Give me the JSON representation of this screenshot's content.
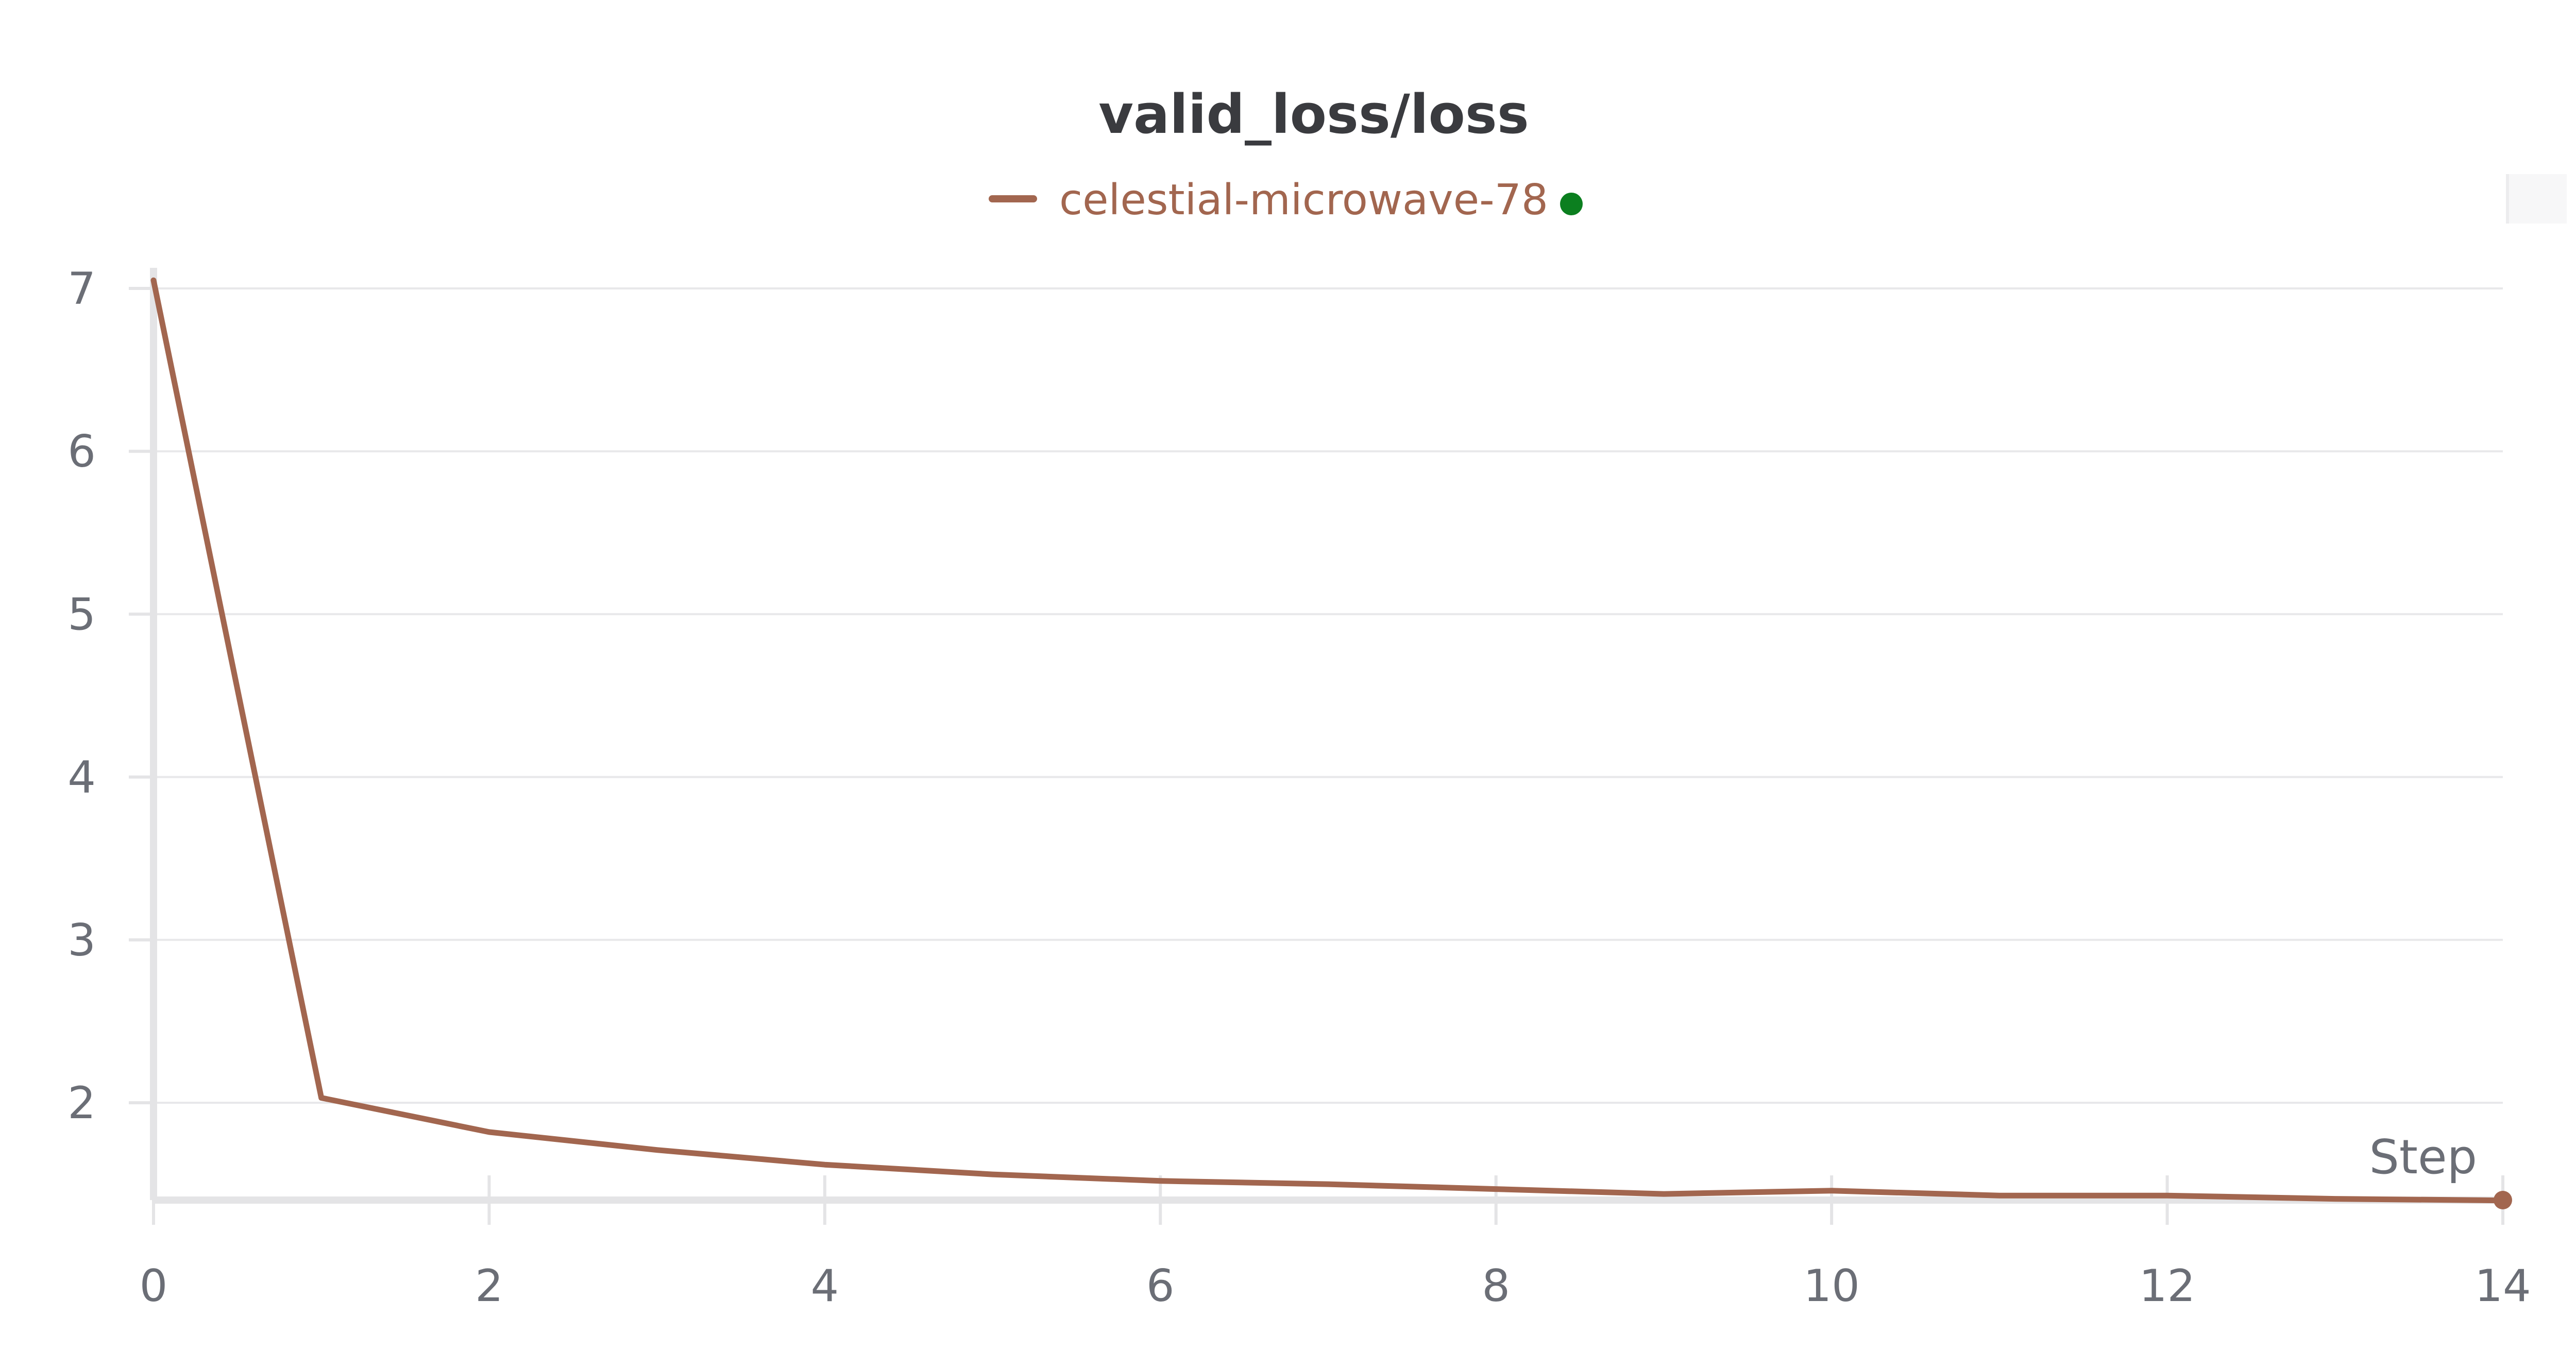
{
  "chart_data": {
    "type": "line",
    "title": "valid_loss/loss",
    "xlabel": "Step",
    "ylabel": "",
    "xlim": [
      0,
      14
    ],
    "ylim": [
      1.4,
      7.15
    ],
    "x_ticks": [
      0,
      2,
      4,
      6,
      8,
      10,
      12,
      14
    ],
    "y_ticks": [
      2,
      3,
      4,
      5,
      6,
      7
    ],
    "grid": true,
    "legend": "top-center",
    "series": [
      {
        "name": "celestial-microwave-78",
        "color": "#a2664f",
        "x": [
          0,
          1,
          2,
          3,
          4,
          5,
          6,
          7,
          8,
          9,
          10,
          11,
          12,
          13,
          14
        ],
        "y": [
          7.05,
          2.03,
          1.82,
          1.71,
          1.62,
          1.56,
          1.52,
          1.5,
          1.47,
          1.44,
          1.46,
          1.43,
          1.43,
          1.41,
          1.4
        ]
      }
    ],
    "status_dot_color": "#0b7f1f"
  }
}
